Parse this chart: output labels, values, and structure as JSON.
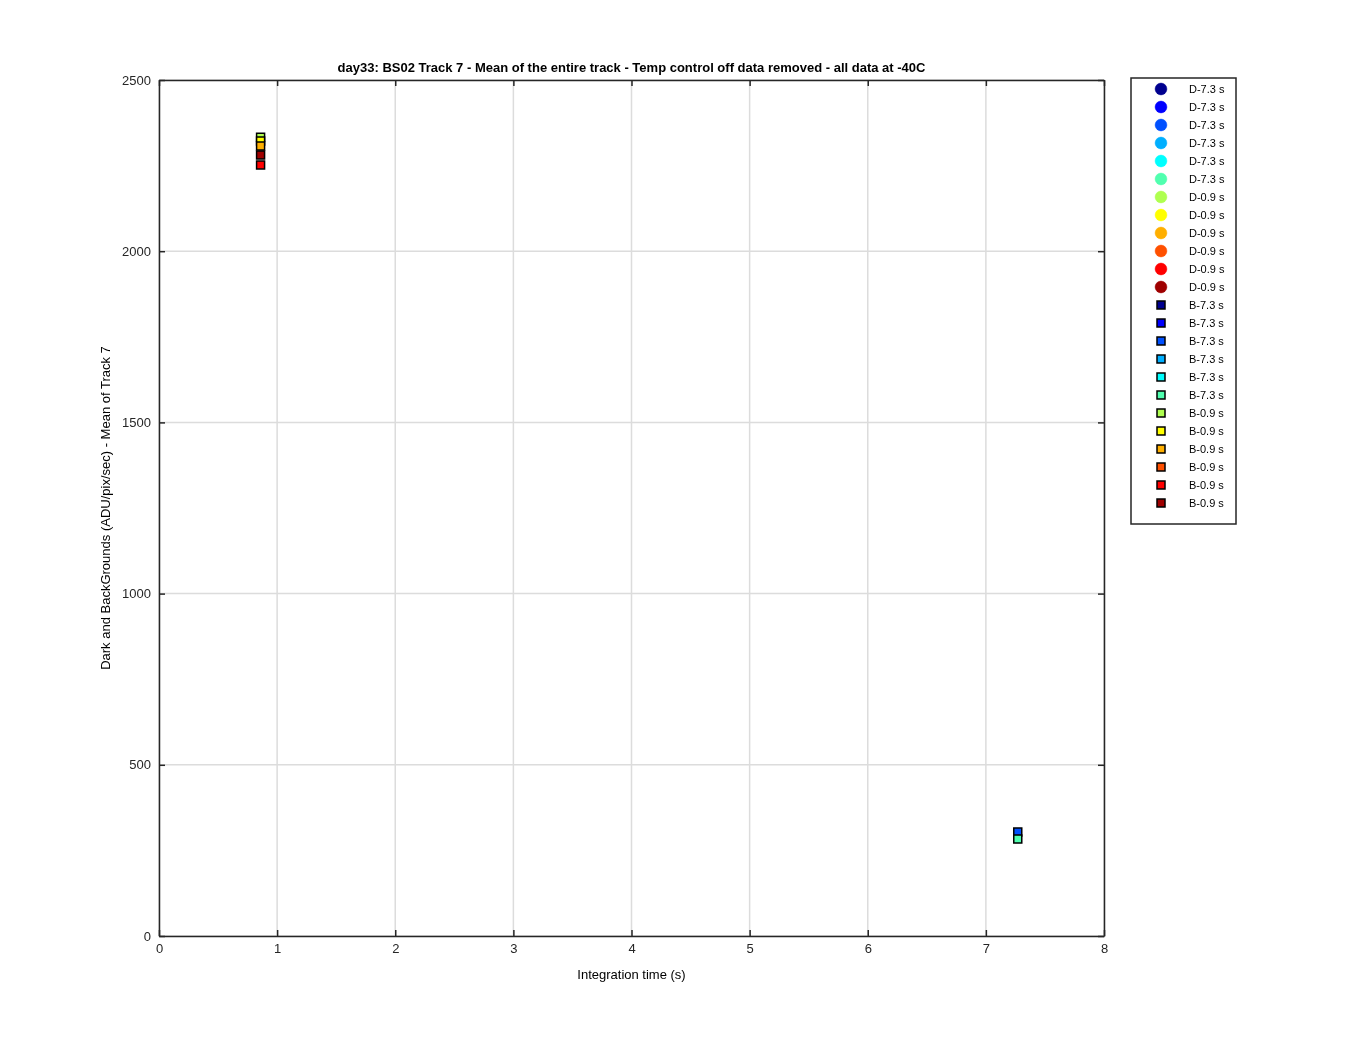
{
  "chart_data": {
    "type": "scatter",
    "title": "day33: BS02  Track 7 - Mean of the entire track - Temp control off data removed - all data at -40C",
    "xlabel": "Integration time (s)",
    "ylabel": "Dark and BackGrounds (ADU/pix/sec) - Mean of Track 7",
    "xlim": [
      0,
      8
    ],
    "xticks": [
      0,
      1,
      2,
      3,
      4,
      5,
      6,
      7,
      8
    ],
    "ylim": [
      0,
      2500
    ],
    "yticks": [
      0,
      500,
      1000,
      1500,
      2000,
      2500
    ],
    "grid": true,
    "legend": "right",
    "x": [
      0.86,
      7.27
    ],
    "series": [
      {
        "name": "D-7.3 s",
        "color": "#00008f",
        "marker": "circle",
        "values": [
          null,
          null
        ]
      },
      {
        "name": "D-7.3 s",
        "color": "#0000ff",
        "marker": "circle",
        "values": [
          null,
          null
        ]
      },
      {
        "name": "D-7.3 s",
        "color": "#0050ff",
        "marker": "circle",
        "values": [
          null,
          null
        ]
      },
      {
        "name": "D-7.3 s",
        "color": "#00afff",
        "marker": "circle",
        "values": [
          null,
          null
        ]
      },
      {
        "name": "D-7.3 s",
        "color": "#00ffff",
        "marker": "circle",
        "values": [
          null,
          null
        ]
      },
      {
        "name": "D-7.3 s",
        "color": "#50ffaf",
        "marker": "circle",
        "values": [
          null,
          null
        ]
      },
      {
        "name": "D-0.9 s",
        "color": "#afff50",
        "marker": "circle",
        "values": [
          null,
          null
        ]
      },
      {
        "name": "D-0.9 s",
        "color": "#ffff00",
        "marker": "circle",
        "values": [
          null,
          null
        ]
      },
      {
        "name": "D-0.9 s",
        "color": "#ffaf00",
        "marker": "circle",
        "values": [
          null,
          null
        ]
      },
      {
        "name": "D-0.9 s",
        "color": "#ff5000",
        "marker": "circle",
        "values": [
          null,
          null
        ]
      },
      {
        "name": "D-0.9 s",
        "color": "#ff0000",
        "marker": "circle",
        "values": [
          null,
          null
        ]
      },
      {
        "name": "D-0.9 s",
        "color": "#9f0000",
        "marker": "circle",
        "values": [
          null,
          null
        ]
      },
      {
        "name": "B-7.3 s",
        "color": "#00008f",
        "marker": "square",
        "values": [
          null,
          null
        ]
      },
      {
        "name": "B-7.3 s",
        "color": "#0000ff",
        "marker": "square",
        "values": [
          null,
          null
        ]
      },
      {
        "name": "B-7.3 s",
        "color": "#0050ff",
        "marker": "square",
        "values": [
          null,
          304
        ]
      },
      {
        "name": "B-7.3 s",
        "color": "#00afff",
        "marker": "square",
        "values": [
          null,
          null
        ]
      },
      {
        "name": "B-7.3 s",
        "color": "#00ffff",
        "marker": "square",
        "values": [
          null,
          null
        ]
      },
      {
        "name": "B-7.3 s",
        "color": "#50ffaf",
        "marker": "square",
        "values": [
          null,
          283
        ]
      },
      {
        "name": "B-0.9 s",
        "color": "#afff50",
        "marker": "square",
        "values": [
          2333,
          null
        ]
      },
      {
        "name": "B-0.9 s",
        "color": "#ffff00",
        "marker": "square",
        "values": [
          2322,
          null
        ]
      },
      {
        "name": "B-0.9 s",
        "color": "#ffaf00",
        "marker": "square",
        "values": [
          2307,
          null
        ]
      },
      {
        "name": "B-0.9 s",
        "color": "#ff5000",
        "marker": "square",
        "values": [
          null,
          null
        ]
      },
      {
        "name": "B-0.9 s",
        "color": "#ff0000",
        "marker": "square",
        "values": [
          2252,
          null
        ]
      },
      {
        "name": "B-0.9 s",
        "color": "#9f0000",
        "marker": "square",
        "values": [
          2281,
          null
        ]
      }
    ]
  }
}
